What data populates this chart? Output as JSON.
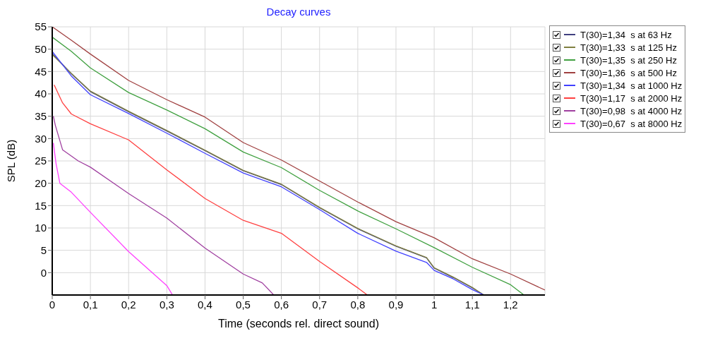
{
  "chart_data": {
    "type": "line",
    "title": "Decay curves",
    "xlabel": "Time (seconds rel. direct sound)",
    "ylabel": "SPL (dB)",
    "xlim": [
      0,
      1.29
    ],
    "ylim": [
      -5,
      55
    ],
    "xticks": [
      0,
      {
        "value": 0.1,
        "label": "0,1"
      },
      {
        "value": 0.2,
        "label": "0,2"
      },
      {
        "value": 0.3,
        "label": "0,3"
      },
      {
        "value": 0.4,
        "label": "0,4"
      },
      {
        "value": 0.5,
        "label": "0,5"
      },
      {
        "value": 0.6,
        "label": "0,6"
      },
      {
        "value": 0.7,
        "label": "0,7"
      },
      {
        "value": 0.8,
        "label": "0,8"
      },
      {
        "value": 0.9,
        "label": "0,9"
      },
      1,
      {
        "value": 1.1,
        "label": "1,1"
      },
      {
        "value": 1.2,
        "label": "1,2"
      }
    ],
    "yticks": [
      0,
      5,
      10,
      15,
      20,
      25,
      30,
      35,
      40,
      45,
      50,
      55
    ],
    "grid": true,
    "legend": "right",
    "line_style": "solid",
    "series": [
      {
        "name": "T(30)=1,34  s at 63 Hz",
        "color": "#404080",
        "x": [
          0,
          0.05,
          0.1,
          0.2,
          0.3,
          0.4,
          0.5,
          0.6,
          0.7,
          0.8,
          0.9,
          0.98,
          1,
          1.05,
          1.1,
          1.13
        ],
        "values": [
          49,
          44.5,
          40.5,
          36,
          31.7,
          27.3,
          22.8,
          19.7,
          14.5,
          9.8,
          5.9,
          3.3,
          1,
          -1.1,
          -3.4,
          -5
        ]
      },
      {
        "name": "T(30)=1,33  s at 125 Hz",
        "color": "#808040",
        "x": [
          0,
          0.05,
          0.1,
          0.2,
          0.3,
          0.4,
          0.5,
          0.6,
          0.7,
          0.8,
          0.9,
          0.98,
          1,
          1.05,
          1.1,
          1.13
        ],
        "values": [
          48.8,
          44.6,
          40.6,
          36.1,
          31.8,
          27.4,
          22.9,
          19.8,
          14.6,
          9.9,
          6,
          3.4,
          1.1,
          -1,
          -3.3,
          -5
        ]
      },
      {
        "name": "T(30)=1,35  s at 250 Hz",
        "color": "#40a040",
        "x": [
          0,
          0.05,
          0.1,
          0.2,
          0.3,
          0.4,
          0.5,
          0.6,
          0.7,
          0.8,
          0.9,
          1,
          1.1,
          1.2,
          1.235
        ],
        "values": [
          52.7,
          49.5,
          45.8,
          40.3,
          36.4,
          32.2,
          27,
          23.5,
          18.4,
          13.8,
          9.8,
          5.6,
          1.2,
          -2.7,
          -5
        ]
      },
      {
        "name": "T(30)=1,36  s at 500 Hz",
        "color": "#a04040",
        "x": [
          0,
          0.05,
          0.1,
          0.2,
          0.3,
          0.4,
          0.5,
          0.6,
          0.7,
          0.8,
          0.9,
          1,
          1.1,
          1.2,
          1.29
        ],
        "values": [
          55,
          52,
          48.9,
          43,
          38.7,
          34.8,
          29.1,
          25.2,
          20.5,
          15.8,
          11.4,
          7.8,
          3.1,
          -0.3,
          -3.9
        ]
      },
      {
        "name": "T(30)=1,34  s at 1000 Hz",
        "color": "#4040ff",
        "x": [
          0,
          0.05,
          0.1,
          0.2,
          0.3,
          0.4,
          0.5,
          0.6,
          0.7,
          0.8,
          0.9,
          0.98,
          1,
          1.05,
          1.1,
          1.13
        ],
        "values": [
          49.5,
          44,
          39.8,
          35.6,
          31.2,
          26.7,
          22.3,
          19.2,
          14.1,
          8.8,
          4.8,
          2.3,
          0.5,
          -1.4,
          -3.8,
          -5
        ]
      },
      {
        "name": "T(30)=1,17  s at 2000 Hz",
        "color": "#ff4040",
        "x": [
          0.005,
          0.027,
          0.05,
          0.1,
          0.2,
          0.3,
          0.4,
          0.5,
          0.6,
          0.7,
          0.8,
          0.825
        ],
        "values": [
          42,
          38,
          35.5,
          33.3,
          29.7,
          23,
          16.6,
          11.7,
          8.8,
          2.5,
          -3.4,
          -5
        ]
      },
      {
        "name": "T(30)=0,98  s at 4000 Hz",
        "color": "#a040a0",
        "x": [
          0.003,
          0.008,
          0.027,
          0.068,
          0.1,
          0.2,
          0.3,
          0.4,
          0.5,
          0.55,
          0.58
        ],
        "values": [
          35,
          33,
          27.5,
          25,
          23.6,
          17.7,
          12.2,
          5.5,
          -0.3,
          -2.3,
          -5
        ]
      },
      {
        "name": "T(30)=0,67  s at 8000 Hz",
        "color": "#ff40ff",
        "x": [
          0.003,
          0.01,
          0.02,
          0.05,
          0.1,
          0.2,
          0.3,
          0.315
        ],
        "values": [
          29,
          24.4,
          20,
          18,
          13.5,
          4.7,
          -2.9,
          -5
        ]
      }
    ]
  }
}
